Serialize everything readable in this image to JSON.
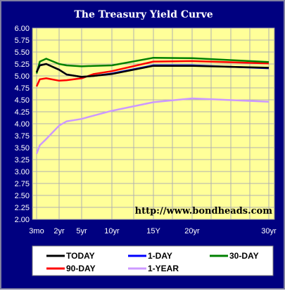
{
  "chart_data": {
    "type": "line",
    "title": "The Treasury Yield Curve",
    "annotation": "http://www.bondheads.com",
    "x_tick_labels": [
      "3mo",
      "2yr",
      "5yr",
      "10yr",
      "15Y",
      "20yr",
      "30yr"
    ],
    "x_tick_positions": [
      0.25,
      2,
      5,
      10,
      15,
      20,
      30
    ],
    "y_tick_labels": [
      "6.00",
      "5.75",
      "5.50",
      "5.25",
      "5.00",
      "4.75",
      "4.50",
      "4.25",
      "4.00",
      "3.75",
      "3.50",
      "3.25",
      "3.00",
      "2.75",
      "2.50",
      "2.25",
      "2.00"
    ],
    "ylim": [
      2.0,
      6.0
    ],
    "grid": true,
    "legend_placement": "bottom",
    "x": [
      0.25,
      0.5,
      1,
      2,
      3,
      5,
      7,
      10,
      15,
      20,
      30
    ],
    "series": [
      {
        "name": "TODAY",
        "color": "#000000",
        "values": [
          5.08,
          5.22,
          5.25,
          5.13,
          5.03,
          4.98,
          5.0,
          5.04,
          5.21,
          5.21,
          5.17
        ]
      },
      {
        "name": "1-DAY",
        "color": "#0000ff",
        "values": [
          5.08,
          5.22,
          5.25,
          5.13,
          5.03,
          4.98,
          5.0,
          5.05,
          5.22,
          5.22,
          5.16
        ]
      },
      {
        "name": "30-DAY",
        "color": "#008000",
        "values": [
          5.05,
          5.3,
          5.36,
          5.25,
          5.22,
          5.2,
          5.21,
          5.22,
          5.38,
          5.37,
          5.29
        ]
      },
      {
        "name": "90-DAY",
        "color": "#ff0000",
        "values": [
          4.78,
          4.93,
          4.95,
          4.9,
          4.91,
          4.95,
          5.04,
          5.1,
          5.3,
          5.31,
          5.26
        ]
      },
      {
        "name": "1-YEAR",
        "color": "#cc99ff",
        "values": [
          3.37,
          3.55,
          3.68,
          3.96,
          4.05,
          4.1,
          4.17,
          4.27,
          4.45,
          4.53,
          4.46
        ]
      }
    ]
  }
}
